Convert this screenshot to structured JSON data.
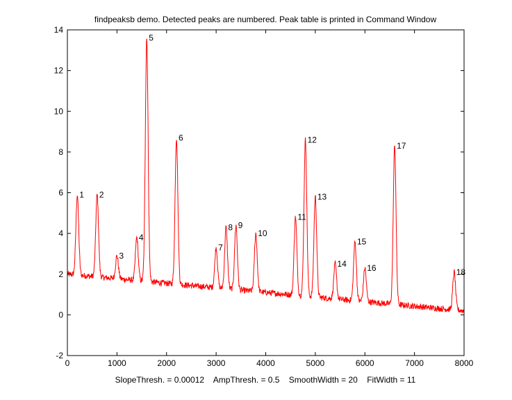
{
  "chart_data": {
    "type": "line",
    "title": "findpeaksb demo. Detected peaks are numbered. Peak table is printed in Command Window",
    "xlabel": "SlopeThresh. = 0.00012    AmpThresh. = 0.5    SmoothWidth = 20    FitWidth = 11",
    "ylabel": "",
    "xlim": [
      0,
      8000
    ],
    "ylim": [
      -2,
      14
    ],
    "x_ticks": [
      "0",
      "1000",
      "2000",
      "3000",
      "4000",
      "5000",
      "6000",
      "7000",
      "8000"
    ],
    "y_ticks": [
      "-2",
      "0",
      "2",
      "4",
      "6",
      "8",
      "10",
      "12",
      "14"
    ],
    "grid": false,
    "legend": null,
    "series": [
      {
        "name": "signal",
        "color": "#ff0000",
        "baseline": {
          "x": [
            0,
            8000
          ],
          "y": [
            2.0,
            0.2
          ]
        },
        "noise_amplitude": 0.15
      }
    ],
    "peaks": [
      {
        "label": "1",
        "x": 200,
        "y": 5.9
      },
      {
        "label": "2",
        "x": 600,
        "y": 5.9
      },
      {
        "label": "3",
        "x": 1000,
        "y": 2.9
      },
      {
        "label": "4",
        "x": 1400,
        "y": 3.8
      },
      {
        "label": "5",
        "x": 1600,
        "y": 13.6
      },
      {
        "label": "6",
        "x": 2200,
        "y": 8.7
      },
      {
        "label": "7",
        "x": 3000,
        "y": 3.3
      },
      {
        "label": "8",
        "x": 3200,
        "y": 4.3
      },
      {
        "label": "9",
        "x": 3400,
        "y": 4.4
      },
      {
        "label": "10",
        "x": 3800,
        "y": 4.0
      },
      {
        "label": "11",
        "x": 4600,
        "y": 4.8
      },
      {
        "label": "12",
        "x": 4800,
        "y": 8.6
      },
      {
        "label": "13",
        "x": 5000,
        "y": 5.8
      },
      {
        "label": "14",
        "x": 5400,
        "y": 2.5
      },
      {
        "label": "15",
        "x": 5800,
        "y": 3.6
      },
      {
        "label": "16",
        "x": 6000,
        "y": 2.3
      },
      {
        "label": "17",
        "x": 6600,
        "y": 8.3
      },
      {
        "label": "18",
        "x": 7800,
        "y": 2.1
      }
    ]
  }
}
